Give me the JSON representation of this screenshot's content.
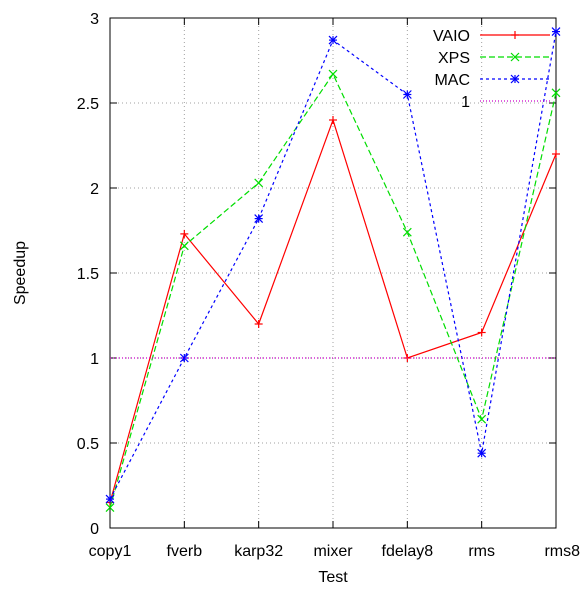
{
  "chart_data": {
    "type": "line",
    "title": "",
    "xlabel": "Test",
    "ylabel": "Speedup",
    "categories": [
      "copy1",
      "fverb",
      "karp32",
      "mixer",
      "fdelay8",
      "rms",
      "rms8"
    ],
    "yticks": [
      "0",
      "0.5",
      "1",
      "1.5",
      "2",
      "2.5",
      "3"
    ],
    "ylim": [
      0,
      3
    ],
    "grid": true,
    "legend_position": "top-right",
    "series": [
      {
        "name": "VAIO",
        "color": "#ff0000",
        "dash": "solid",
        "marker": "plus",
        "values": [
          0.15,
          1.73,
          1.2,
          2.4,
          1.0,
          1.15,
          2.2
        ]
      },
      {
        "name": "XPS",
        "color": "#00dd00",
        "dash": "dashed",
        "marker": "cross",
        "values": [
          0.12,
          1.66,
          2.03,
          2.67,
          1.74,
          0.64,
          2.56
        ]
      },
      {
        "name": "MAC",
        "color": "#0000ff",
        "dash": "dotted",
        "marker": "star",
        "values": [
          0.17,
          1.0,
          1.82,
          2.87,
          2.55,
          0.44,
          2.92
        ]
      },
      {
        "name": "1",
        "color": "#cc00cc",
        "dash": "fine-dotted",
        "marker": "none",
        "values": [
          1,
          1,
          1,
          1,
          1,
          1,
          1
        ]
      }
    ]
  }
}
